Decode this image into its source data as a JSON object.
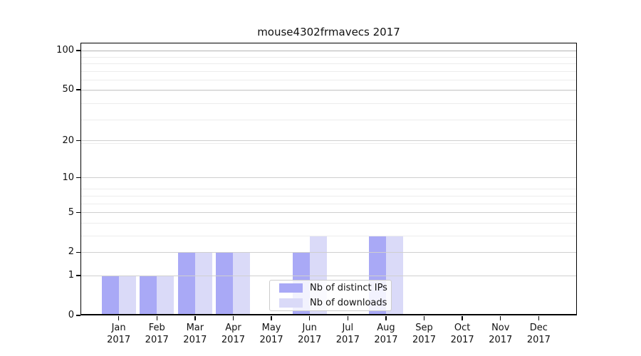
{
  "chart_data": {
    "type": "bar",
    "title": "mouse4302frmavecs 2017",
    "x_axis": {
      "categories": [
        {
          "month": "Jan",
          "year": "2017"
        },
        {
          "month": "Feb",
          "year": "2017"
        },
        {
          "month": "Mar",
          "year": "2017"
        },
        {
          "month": "Apr",
          "year": "2017"
        },
        {
          "month": "May",
          "year": "2017"
        },
        {
          "month": "Jun",
          "year": "2017"
        },
        {
          "month": "Jul",
          "year": "2017"
        },
        {
          "month": "Aug",
          "year": "2017"
        },
        {
          "month": "Sep",
          "year": "2017"
        },
        {
          "month": "Oct",
          "year": "2017"
        },
        {
          "month": "Nov",
          "year": "2017"
        },
        {
          "month": "Dec",
          "year": "2017"
        }
      ]
    },
    "y_axis": {
      "scale": "log1p",
      "range": [
        0,
        115
      ],
      "ticks": [
        {
          "value": 0,
          "label": "0"
        },
        {
          "value": 1,
          "label": "1"
        },
        {
          "value": 2,
          "label": "2"
        },
        {
          "value": 5,
          "label": "5"
        },
        {
          "value": 10,
          "label": "10"
        },
        {
          "value": 20,
          "label": "20"
        },
        {
          "value": 50,
          "label": "50"
        },
        {
          "value": 100,
          "label": "100"
        }
      ],
      "minor_gridline_values": [
        1,
        2,
        3,
        4,
        5,
        6,
        7,
        8,
        19,
        29,
        39,
        49,
        59,
        69,
        79,
        89
      ]
    },
    "series": [
      {
        "name": "Nb of distinct IPs",
        "color": "#a9a9f6",
        "values": [
          1,
          1,
          2,
          2,
          0,
          2,
          0,
          3,
          0,
          0,
          0,
          0
        ]
      },
      {
        "name": "Nb of downloads",
        "color": "#dadaf8",
        "values": [
          1,
          1,
          2,
          2,
          0,
          3,
          0,
          3,
          0,
          0,
          0,
          0
        ]
      }
    ],
    "legend": {
      "position": "lower center"
    }
  },
  "colors": {
    "grid_major": "#cfcfcf",
    "grid_minor": "#ececec",
    "grid_top_line": "#b3b3b3",
    "axis": "#000000",
    "text": "#111111"
  }
}
